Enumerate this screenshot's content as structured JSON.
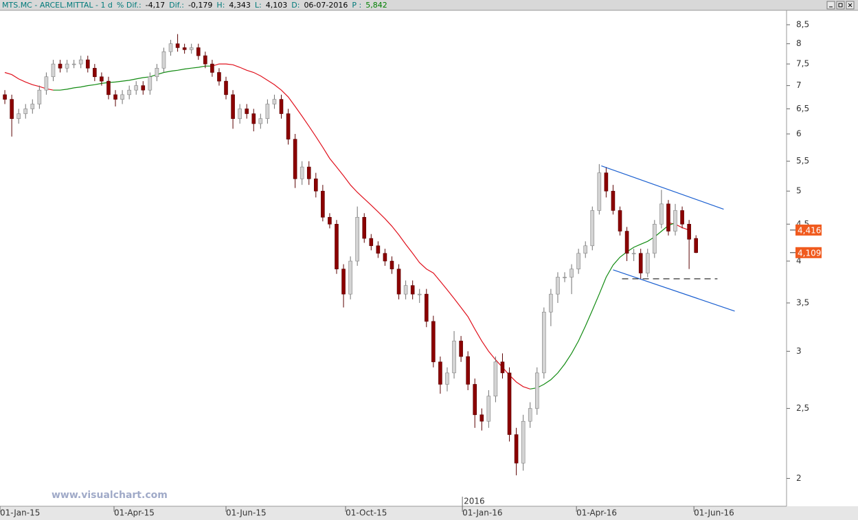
{
  "header": {
    "items": [
      {
        "text": "MTS.MC - ARCEL.MITTAL -  1 d",
        "color": "#007a7a"
      },
      {
        "text": "% Dif.:",
        "color": "#007a7a"
      },
      {
        "text": "-4,17",
        "color": "#000000"
      },
      {
        "text": "Dif.:",
        "color": "#007a7a"
      },
      {
        "text": "-0,179",
        "color": "#000000"
      },
      {
        "text": "H:",
        "color": "#007a7a"
      },
      {
        "text": "4,343",
        "color": "#000000"
      },
      {
        "text": "L:",
        "color": "#007a7a"
      },
      {
        "text": "4,103",
        "color": "#000000"
      },
      {
        "text": "D:",
        "color": "#007a7a"
      },
      {
        "text": "06-07-2016",
        "color": "#000000"
      },
      {
        "text": "P :",
        "color": "#007a7a"
      },
      {
        "text": "5,842",
        "color": "#008000"
      }
    ]
  },
  "watermark": "www.visualchart.com",
  "chart_data": {
    "type": "candlestick",
    "log_scale": true,
    "up_color": "#d4d4d4",
    "down_color": "#8b0000",
    "open": [
      6.8,
      6.7,
      6.3,
      6.4,
      6.5,
      6.6,
      6.9,
      7.2,
      7.5,
      7.4,
      7.5,
      7.5,
      7.6,
      7.4,
      7.2,
      7.1,
      6.8,
      6.7,
      6.8,
      6.9,
      7.0,
      6.9,
      7.2,
      7.4,
      7.8,
      8.0,
      7.9,
      7.85,
      7.9,
      7.7,
      7.5,
      7.3,
      7.1,
      6.8,
      6.3,
      6.5,
      6.4,
      6.2,
      6.3,
      6.6,
      6.7,
      6.4,
      5.9,
      5.2,
      5.4,
      5.2,
      5.0,
      4.6,
      4.5,
      3.9,
      3.6,
      4.0,
      4.6,
      4.3,
      4.2,
      4.1,
      4.0,
      3.9,
      3.6,
      3.7,
      3.6,
      3.6,
      3.3,
      2.9,
      2.7,
      2.8,
      3.1,
      2.95,
      2.7,
      2.45,
      2.4,
      2.6,
      2.9,
      2.8,
      2.3,
      2.1,
      2.4,
      2.5,
      2.8,
      3.4,
      3.6,
      3.8,
      3.8,
      3.9,
      4.1,
      4.2,
      4.7,
      5.3,
      5.0,
      4.7,
      4.4,
      4.1,
      4.1,
      3.85,
      4.1,
      4.5,
      4.8,
      4.4,
      4.7,
      4.5,
      4.3
    ],
    "high": [
      6.9,
      6.8,
      6.5,
      6.6,
      6.7,
      7.0,
      7.3,
      7.6,
      7.6,
      7.6,
      7.6,
      7.7,
      7.7,
      7.5,
      7.3,
      7.2,
      6.9,
      6.9,
      7.0,
      7.1,
      7.1,
      7.3,
      7.5,
      7.9,
      8.1,
      8.25,
      8.0,
      8.0,
      8.0,
      7.8,
      7.6,
      7.4,
      7.2,
      6.9,
      6.6,
      6.6,
      6.5,
      6.4,
      6.7,
      6.8,
      6.8,
      6.5,
      6.0,
      5.5,
      5.5,
      5.3,
      5.1,
      4.66,
      4.56,
      3.96,
      4.06,
      4.76,
      4.66,
      4.36,
      4.26,
      4.16,
      4.06,
      3.96,
      3.76,
      3.76,
      3.66,
      3.66,
      3.36,
      2.95,
      2.85,
      3.2,
      3.15,
      3.0,
      2.75,
      2.5,
      2.65,
      2.95,
      2.98,
      2.85,
      2.35,
      2.45,
      2.55,
      2.85,
      3.45,
      3.66,
      3.86,
      3.86,
      3.96,
      4.16,
      4.26,
      4.76,
      5.45,
      5.4,
      5.1,
      4.76,
      4.46,
      4.16,
      4.16,
      4.16,
      4.56,
      5.02,
      4.86,
      4.8,
      4.76,
      4.56,
      4.343
    ],
    "low": [
      6.6,
      5.95,
      6.2,
      6.3,
      6.4,
      6.5,
      6.8,
      7.1,
      7.3,
      7.3,
      7.4,
      7.4,
      7.3,
      7.1,
      7.0,
      6.7,
      6.55,
      6.6,
      6.7,
      6.8,
      6.8,
      6.8,
      7.1,
      7.3,
      7.7,
      7.8,
      7.75,
      7.75,
      7.6,
      7.4,
      7.2,
      7.0,
      6.7,
      6.1,
      6.2,
      6.3,
      6.05,
      6.1,
      6.2,
      6.5,
      6.3,
      5.8,
      5.05,
      5.1,
      5.1,
      4.9,
      4.54,
      4.44,
      3.84,
      3.45,
      3.54,
      3.94,
      4.24,
      4.14,
      4.04,
      3.94,
      3.84,
      3.54,
      3.54,
      3.54,
      3.5,
      3.24,
      2.85,
      2.62,
      2.64,
      2.75,
      2.9,
      2.65,
      2.35,
      2.33,
      2.35,
      2.55,
      2.75,
      2.25,
      2.02,
      2.05,
      2.35,
      2.45,
      2.75,
      3.25,
      3.5,
      3.74,
      3.6,
      3.84,
      4.04,
      4.14,
      4.64,
      4.9,
      4.64,
      4.34,
      4.0,
      4.0,
      3.78,
      3.8,
      4.04,
      4.44,
      4.34,
      4.34,
      4.44,
      3.9,
      4.103
    ],
    "close": [
      6.7,
      6.3,
      6.4,
      6.5,
      6.6,
      6.9,
      7.2,
      7.5,
      7.4,
      7.5,
      7.5,
      7.6,
      7.4,
      7.2,
      7.1,
      6.8,
      6.7,
      6.8,
      6.9,
      7.0,
      6.9,
      7.2,
      7.4,
      7.8,
      8.0,
      7.9,
      7.85,
      7.9,
      7.7,
      7.5,
      7.3,
      7.1,
      6.8,
      6.3,
      6.5,
      6.4,
      6.2,
      6.3,
      6.6,
      6.7,
      6.4,
      5.9,
      5.2,
      5.4,
      5.2,
      5.0,
      4.6,
      4.5,
      3.9,
      3.6,
      4.0,
      4.6,
      4.3,
      4.2,
      4.1,
      4.0,
      3.9,
      3.6,
      3.7,
      3.6,
      3.6,
      3.3,
      2.9,
      2.7,
      2.8,
      3.1,
      2.95,
      2.7,
      2.45,
      2.4,
      2.6,
      2.9,
      2.8,
      2.3,
      2.1,
      2.4,
      2.5,
      2.8,
      3.4,
      3.6,
      3.8,
      3.8,
      3.9,
      4.1,
      4.2,
      4.7,
      5.3,
      5.0,
      4.7,
      4.4,
      4.1,
      4.1,
      3.85,
      4.1,
      4.5,
      4.8,
      4.4,
      4.7,
      4.5,
      4.288,
      4.109
    ],
    "lines": [
      {
        "color": "#e0101c",
        "values": [
          7.3,
          7.25,
          7.15,
          7.08,
          7.02,
          6.98,
          6.93,
          6.9,
          null,
          null,
          null,
          null,
          null,
          null,
          null,
          null,
          null,
          null,
          null,
          null,
          null,
          null,
          null,
          null,
          null,
          null,
          null,
          null,
          null,
          null,
          7.45,
          7.5,
          7.5,
          7.48,
          7.42,
          7.35,
          7.3,
          7.22,
          7.12,
          7.02,
          6.9,
          6.75,
          6.55,
          6.35,
          6.15,
          5.95,
          5.75,
          5.55,
          5.4,
          5.25,
          5.1,
          4.98,
          4.88,
          4.78,
          4.68,
          4.58,
          4.47,
          4.35,
          4.22,
          4.1,
          3.98,
          3.9,
          3.85,
          3.75,
          3.65,
          3.55,
          3.45,
          3.35,
          3.22,
          3.1,
          3.0,
          2.92,
          2.85,
          2.78,
          2.72,
          2.68,
          2.66,
          null,
          null,
          null,
          null,
          null,
          null,
          null,
          null,
          null,
          null,
          null,
          null,
          null,
          null,
          null,
          null,
          null,
          null,
          null,
          4.52,
          4.5,
          4.45,
          4.416
        ]
      },
      {
        "color": "#108a10",
        "values": [
          null,
          null,
          null,
          null,
          null,
          null,
          null,
          6.9,
          6.9,
          6.92,
          6.95,
          6.97,
          7.0,
          7.02,
          7.05,
          7.07,
          7.08,
          7.1,
          7.12,
          7.15,
          7.18,
          7.2,
          7.25,
          7.3,
          7.33,
          7.35,
          7.38,
          7.4,
          7.42,
          7.45,
          7.45,
          null,
          null,
          null,
          null,
          null,
          null,
          null,
          null,
          null,
          null,
          null,
          null,
          null,
          null,
          null,
          null,
          null,
          null,
          null,
          null,
          null,
          null,
          null,
          null,
          null,
          null,
          null,
          null,
          null,
          null,
          null,
          null,
          null,
          null,
          null,
          null,
          null,
          null,
          null,
          null,
          null,
          null,
          null,
          null,
          null,
          2.66,
          2.67,
          2.7,
          2.74,
          2.8,
          2.88,
          2.98,
          3.1,
          3.25,
          3.42,
          3.6,
          3.8,
          3.95,
          4.05,
          4.12,
          4.18,
          4.22,
          4.26,
          4.32,
          4.4,
          4.48,
          4.52,
          null,
          null,
          null
        ]
      }
    ],
    "trendlines": [
      {
        "color": "#1a5fd0",
        "dashed": false,
        "x": [
          86.3,
          104
        ],
        "y": [
          5.42,
          4.72
        ]
      },
      {
        "color": "#1a5fd0",
        "dashed": false,
        "x": [
          88,
          105.6
        ],
        "y": [
          3.89,
          3.41
        ]
      },
      {
        "color": "#303030",
        "dashed": true,
        "x": [
          89.3,
          103.1
        ],
        "y": [
          3.78,
          3.78
        ]
      }
    ],
    "price_labels": [
      {
        "value": 4.416,
        "label": "4,416",
        "color": "#f05a1e"
      },
      {
        "value": 4.109,
        "label": "4,109",
        "color": "#f05a1e"
      }
    ],
    "xlim": [
      -0.7,
      113.1
    ],
    "xticks": [
      {
        "value": -0.7,
        "label": "01-Jan-15"
      },
      {
        "value": 15.8,
        "label": "01-Apr-15"
      },
      {
        "value": 32,
        "label": "01-Jun-15"
      },
      {
        "value": 49.3,
        "label": "01-Oct-15"
      },
      {
        "value": 66.2,
        "label": "01-Jan-16"
      },
      {
        "value": 82.7,
        "label": "01-Apr-16"
      },
      {
        "value": 99.7,
        "label": "01-Jun-16"
      }
    ],
    "year_marker": {
      "value": 66.2,
      "label": "2016"
    },
    "ylim": [
      1.83,
      8.9
    ],
    "yticks": [
      2,
      {
        "value": 2.5,
        "label": "2,5"
      },
      3,
      {
        "value": 3.5,
        "label": "3,5"
      },
      4,
      {
        "value": 4.5,
        "label": "4,5"
      },
      5,
      {
        "value": 5.5,
        "label": "5,5"
      },
      6,
      {
        "value": 6.5,
        "label": "6,5"
      },
      7,
      {
        "value": 7.5,
        "label": "7,5"
      },
      8,
      {
        "value": 8.5,
        "label": "8,5"
      }
    ]
  }
}
